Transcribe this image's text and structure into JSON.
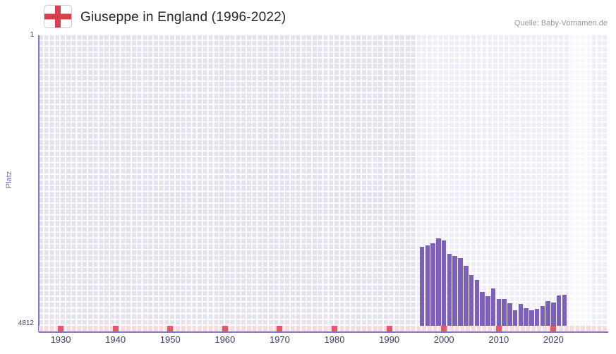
{
  "header": {
    "flag_alt": "England flag (St George's Cross)",
    "title": "Giuseppe in England (1996-2022)",
    "source": "Quelle: Baby-Vornamen.de"
  },
  "chart_data": {
    "type": "bar",
    "title": "Giuseppe in England (1996-2022)",
    "xlabel": "",
    "ylabel": "Platz",
    "grid": true,
    "legend": false,
    "y_axis": {
      "label_top": "1",
      "label_bottom": "4812",
      "min": 1,
      "max": 4812,
      "inverted": true
    },
    "x_domain": [
      1926,
      2030
    ],
    "x_ticks": [
      1930,
      1940,
      1950,
      1960,
      1970,
      1980,
      1990,
      2000,
      2010,
      2020
    ],
    "series": [
      {
        "name": "Platz",
        "x": [
          1996,
          1997,
          1998,
          1999,
          2000,
          2001,
          2002,
          2003,
          2004,
          2005,
          2006,
          2007,
          2008,
          2009,
          2010,
          2011,
          2012,
          2013,
          2014,
          2015,
          2016,
          2017,
          2018,
          2019,
          2020,
          2021,
          2022
        ],
        "values": [
          3500,
          3480,
          3450,
          3360,
          3400,
          3620,
          3655,
          3690,
          3820,
          3970,
          4050,
          4250,
          4320,
          4190,
          4370,
          4370,
          4440,
          4550,
          4450,
          4520,
          4550,
          4530,
          4480,
          4400,
          4430,
          4310,
          4300
        ]
      }
    ],
    "background_zones": [
      {
        "from": 1926,
        "to": 1995,
        "color": "#e5e2ef"
      },
      {
        "from": 1995,
        "to": 2022.8,
        "color": "#efedf7"
      },
      {
        "from": 2022.8,
        "to": 2027,
        "color": "#f8f7fc"
      },
      {
        "from": 2027,
        "to": 2030,
        "color": "#efedf7"
      }
    ],
    "colors": {
      "bar": "#7c60ba",
      "grid_line": "#ffffff",
      "axis_line": "#8577bd",
      "axis_text": "#3b3b66",
      "ylabel_text": "#7668b8",
      "strip_bg": "#f6dce2",
      "strip_decade": "#e05a6d",
      "title_text": "#262626",
      "source_text": "#979797",
      "flag_red": "#d8404e"
    }
  }
}
